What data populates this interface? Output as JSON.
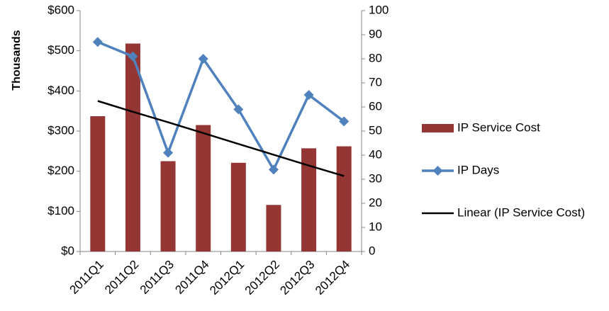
{
  "chart_data": {
    "type": "bar",
    "y_label": "Thousands",
    "categories": [
      "2011Q1",
      "2011Q2",
      "2011Q3",
      "2011Q4",
      "2012Q1",
      "2012Q2",
      "2012Q3",
      "2012Q4"
    ],
    "series": [
      {
        "name": "IP Service Cost",
        "type": "bar",
        "color": "#943634",
        "values": [
          337,
          518,
          225,
          315,
          221,
          116,
          257,
          262
        ]
      },
      {
        "name": "IP Days",
        "type": "line",
        "marker": "diamond",
        "color": "#4f81bd",
        "axis": "y2",
        "values": [
          87,
          81,
          41,
          80,
          59,
          34,
          65,
          54
        ]
      },
      {
        "name": "Linear (IP Service Cost)",
        "type": "line",
        "color": "#000000",
        "values": [
          375,
          348,
          322,
          295,
          268,
          241,
          214,
          188
        ]
      }
    ],
    "ylim": [
      0,
      600
    ],
    "yticks": [
      {
        "value": 0,
        "label": "$0"
      },
      {
        "value": 100,
        "label": "$100"
      },
      {
        "value": 200,
        "label": "$200"
      },
      {
        "value": 300,
        "label": "$300"
      },
      {
        "value": 400,
        "label": "$400"
      },
      {
        "value": 500,
        "label": "$500"
      },
      {
        "value": 600,
        "label": "$600"
      }
    ],
    "y2lim": [
      0,
      100
    ],
    "y2ticks": [
      0,
      10,
      20,
      30,
      40,
      50,
      60,
      70,
      80,
      90,
      100
    ],
    "legend": "right"
  }
}
